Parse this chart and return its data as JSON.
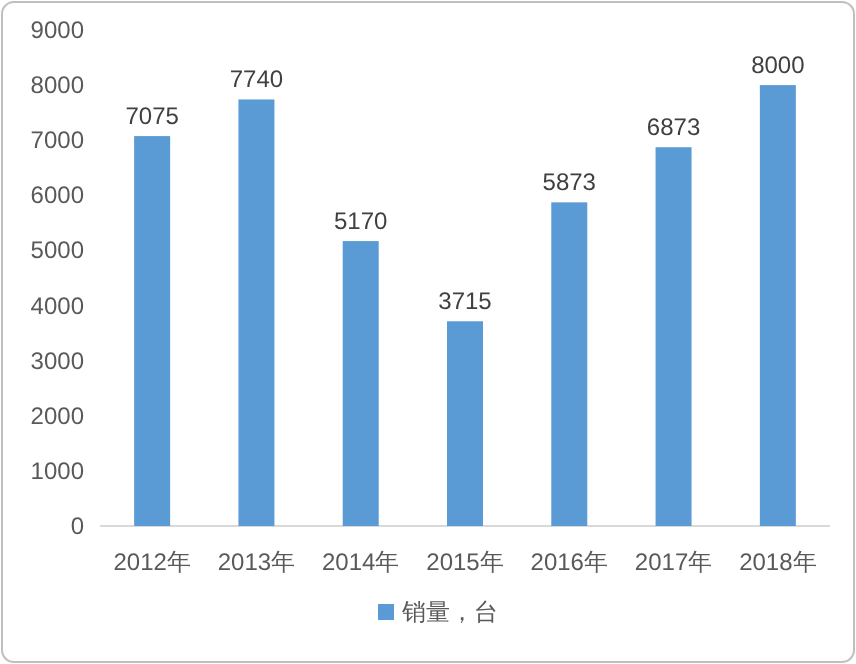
{
  "chart_data": {
    "type": "bar",
    "categories": [
      "2012年",
      "2013年",
      "2014年",
      "2015年",
      "2016年",
      "2017年",
      "2018年"
    ],
    "series": [
      {
        "name": "销量，台",
        "color": "#5b9bd5",
        "values": [
          7075,
          7740,
          5170,
          3715,
          5873,
          6873,
          8000
        ]
      }
    ],
    "ylim": [
      0,
      9000
    ],
    "yticks": [
      0,
      1000,
      2000,
      3000,
      4000,
      5000,
      6000,
      7000,
      8000,
      9000
    ],
    "data_labels": true,
    "legend": "bottom",
    "grid": false
  }
}
